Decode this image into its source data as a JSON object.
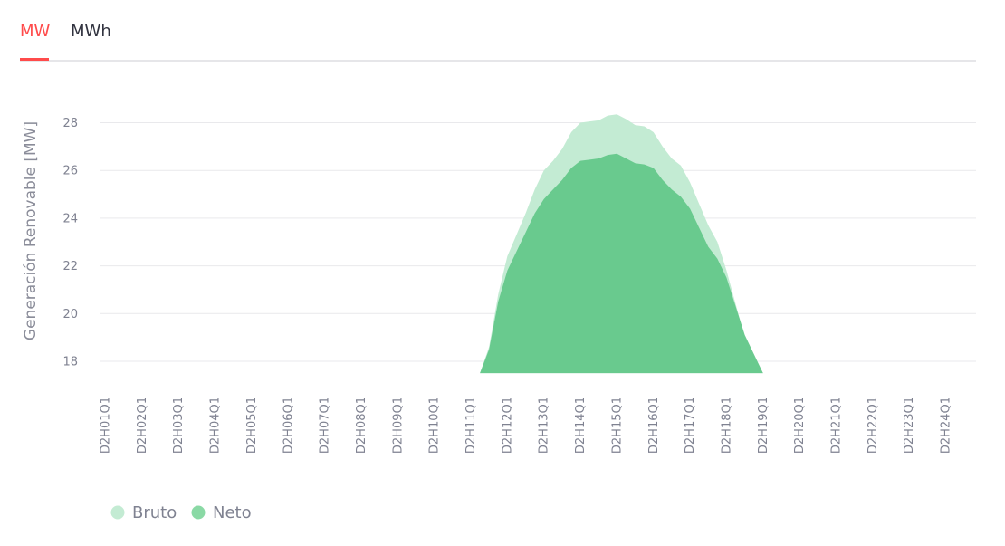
{
  "tabs": [
    {
      "label": "MW",
      "active": true
    },
    {
      "label": "MWh",
      "active": false
    }
  ],
  "colors": {
    "accent": "#ff4b4b",
    "bruto": "#c3ebd3",
    "neto": "#66c88b",
    "neto_legend": "#8ad9a5",
    "grid": "#e9e9ec"
  },
  "chart_data": {
    "type": "area",
    "title": "",
    "xlabel": "",
    "ylabel": "Generación Renovable [MW]",
    "ylim": [
      17.5,
      29
    ],
    "yticks": [
      18,
      20,
      22,
      24,
      26,
      28
    ],
    "grid": true,
    "legend_position": "bottom-left",
    "categories": [
      "D2H01Q1",
      "D2H02Q1",
      "D2H03Q1",
      "D2H04Q1",
      "D2H05Q1",
      "D2H06Q1",
      "D2H07Q1",
      "D2H08Q1",
      "D2H09Q1",
      "D2H10Q1",
      "D2H11Q1",
      "D2H12Q1",
      "D2H13Q1",
      "D2H14Q1",
      "D2H15Q1",
      "D2H16Q1",
      "D2H17Q1",
      "D2H18Q1",
      "D2H19Q1",
      "D2H20Q1",
      "D2H21Q1",
      "D2H22Q1",
      "D2H23Q1",
      "D2H24Q1"
    ],
    "x": [
      10.75,
      11,
      11.25,
      11.5,
      11.75,
      12,
      12.25,
      12.5,
      12.75,
      13,
      13.25,
      13.5,
      13.75,
      14,
      14.25,
      14.5,
      14.75,
      15,
      15.25,
      15.5,
      15.75,
      16,
      16.25,
      16.5,
      16.75,
      17,
      17.25,
      17.5,
      17.75,
      18,
      18.25,
      18.5,
      18.75,
      19
    ],
    "series": [
      {
        "name": "Bruto",
        "values": [
          17.5,
          17.5,
          17.5,
          18.6,
          20.8,
          22.4,
          23.3,
          24.2,
          25.2,
          26.0,
          26.4,
          26.9,
          27.6,
          28.0,
          28.05,
          28.1,
          28.3,
          28.35,
          28.15,
          27.9,
          27.85,
          27.6,
          27.0,
          26.5,
          26.2,
          25.5,
          24.6,
          23.7,
          23.0,
          21.8,
          20.4,
          19.0,
          18.2,
          17.5
        ]
      },
      {
        "name": "Neto",
        "values": [
          17.5,
          17.5,
          17.5,
          18.5,
          20.5,
          21.8,
          22.6,
          23.4,
          24.2,
          24.8,
          25.2,
          25.6,
          26.1,
          26.4,
          26.45,
          26.5,
          26.65,
          26.7,
          26.5,
          26.3,
          26.25,
          26.1,
          25.6,
          25.2,
          24.9,
          24.4,
          23.6,
          22.8,
          22.3,
          21.5,
          20.3,
          19.1,
          18.3,
          17.5
        ]
      }
    ]
  }
}
